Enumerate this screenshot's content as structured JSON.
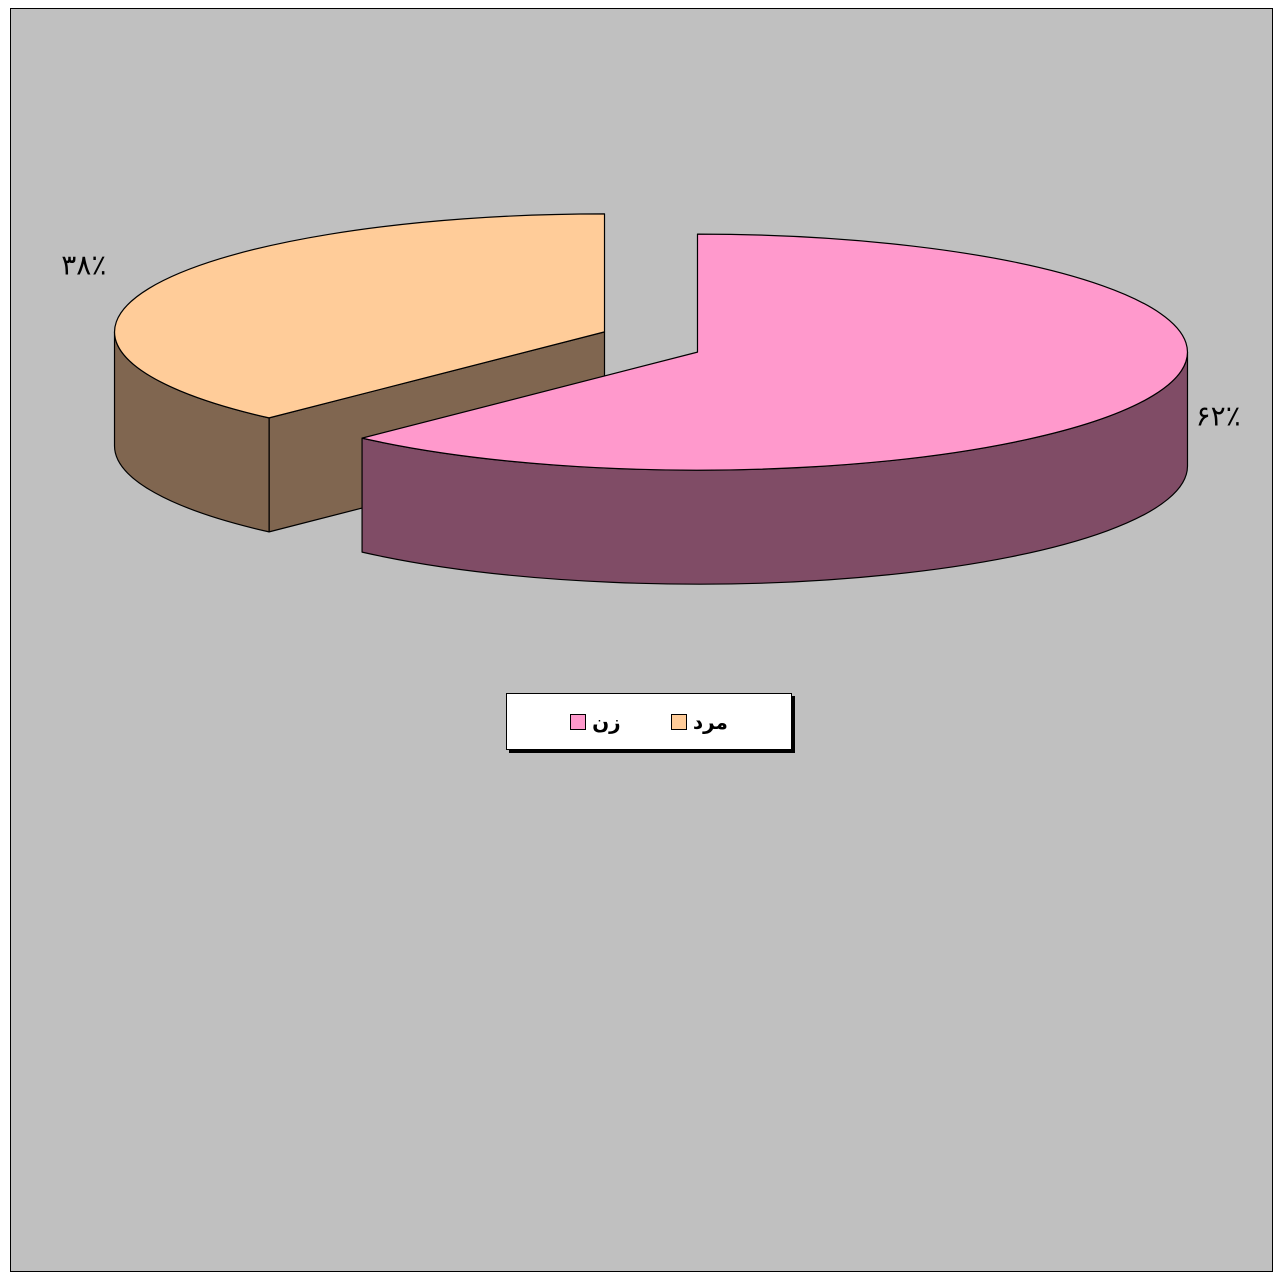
{
  "chart_data": {
    "type": "pie",
    "style": "3d-exploded",
    "categories": [
      "زن",
      "مرد"
    ],
    "values": [
      62,
      38
    ],
    "data_labels": [
      "۶۲٪",
      "۳۸٪"
    ],
    "colors": {
      "زن": {
        "top": "#ff99cc",
        "side": "#804c66"
      },
      "مرد": {
        "top": "#ffcc99",
        "side": "#806650"
      }
    },
    "legend_position": "bottom",
    "background": "#c0c0c0",
    "title": ""
  },
  "legend": {
    "items": [
      {
        "label": "مرد",
        "color": "#ffcc99"
      },
      {
        "label": "زن",
        "color": "#ff99cc"
      }
    ]
  }
}
